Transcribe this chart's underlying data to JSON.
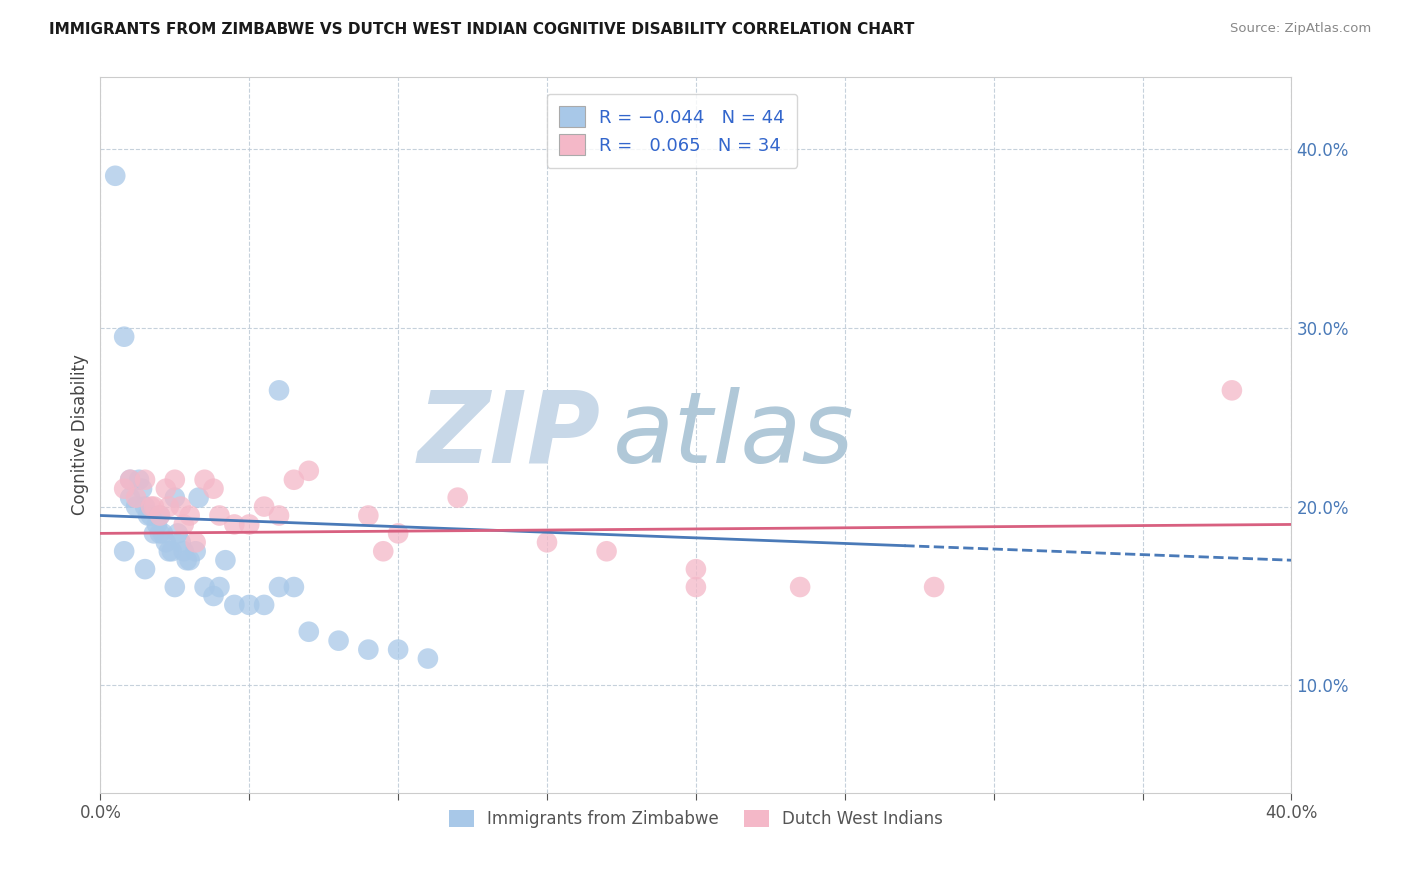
{
  "title": "IMMIGRANTS FROM ZIMBABWE VS DUTCH WEST INDIAN COGNITIVE DISABILITY CORRELATION CHART",
  "source": "Source: ZipAtlas.com",
  "ylabel": "Cognitive Disability",
  "y_ticks": [
    0.1,
    0.2,
    0.3,
    0.4
  ],
  "y_tick_labels": [
    "10.0%",
    "20.0%",
    "30.0%",
    "40.0%"
  ],
  "xlim": [
    0.0,
    0.4
  ],
  "ylim": [
    0.04,
    0.44
  ],
  "R_zimbabwe": -0.044,
  "N_zimbabwe": 44,
  "R_dutch": 0.065,
  "N_dutch": 34,
  "legend_label_1": "Immigrants from Zimbabwe",
  "legend_label_2": "Dutch West Indians",
  "color_zimbabwe": "#a8c8e8",
  "color_dutch": "#f4b8c8",
  "color_zimbabwe_line": "#4a7ab8",
  "color_dutch_line": "#d86080",
  "watermark_zip": "ZIP",
  "watermark_atlas": "atlas",
  "watermark_color_zip": "#c8d8e8",
  "watermark_color_atlas": "#b0c8d8",
  "zimbabwe_x": [
    0.005,
    0.008,
    0.01,
    0.01,
    0.012,
    0.013,
    0.014,
    0.015,
    0.016,
    0.017,
    0.018,
    0.019,
    0.02,
    0.02,
    0.021,
    0.022,
    0.023,
    0.024,
    0.025,
    0.026,
    0.027,
    0.028,
    0.029,
    0.03,
    0.032,
    0.033,
    0.035,
    0.038,
    0.04,
    0.042,
    0.045,
    0.05,
    0.055,
    0.06,
    0.065,
    0.07,
    0.08,
    0.09,
    0.1,
    0.11,
    0.008,
    0.015,
    0.025,
    0.06
  ],
  "zimbabwe_y": [
    0.385,
    0.295,
    0.215,
    0.205,
    0.2,
    0.215,
    0.21,
    0.2,
    0.195,
    0.195,
    0.185,
    0.19,
    0.185,
    0.195,
    0.185,
    0.18,
    0.175,
    0.175,
    0.205,
    0.185,
    0.18,
    0.175,
    0.17,
    0.17,
    0.175,
    0.205,
    0.155,
    0.15,
    0.155,
    0.17,
    0.145,
    0.145,
    0.145,
    0.155,
    0.155,
    0.13,
    0.125,
    0.12,
    0.12,
    0.115,
    0.175,
    0.165,
    0.155,
    0.265
  ],
  "dutch_x": [
    0.008,
    0.01,
    0.012,
    0.015,
    0.017,
    0.018,
    0.02,
    0.022,
    0.023,
    0.025,
    0.027,
    0.028,
    0.03,
    0.032,
    0.035,
    0.038,
    0.04,
    0.045,
    0.05,
    0.055,
    0.06,
    0.065,
    0.07,
    0.09,
    0.095,
    0.1,
    0.12,
    0.15,
    0.17,
    0.2,
    0.2,
    0.235,
    0.28,
    0.38
  ],
  "dutch_y": [
    0.21,
    0.215,
    0.205,
    0.215,
    0.2,
    0.2,
    0.195,
    0.21,
    0.2,
    0.215,
    0.2,
    0.19,
    0.195,
    0.18,
    0.215,
    0.21,
    0.195,
    0.19,
    0.19,
    0.2,
    0.195,
    0.215,
    0.22,
    0.195,
    0.175,
    0.185,
    0.205,
    0.18,
    0.175,
    0.155,
    0.165,
    0.155,
    0.155,
    0.265
  ],
  "line_zim_x0": 0.0,
  "line_zim_x1": 0.4,
  "line_zim_y0": 0.195,
  "line_zim_y1": 0.17,
  "line_dutch_x0": 0.0,
  "line_dutch_x1": 0.4,
  "line_dutch_y0": 0.185,
  "line_dutch_y1": 0.19
}
